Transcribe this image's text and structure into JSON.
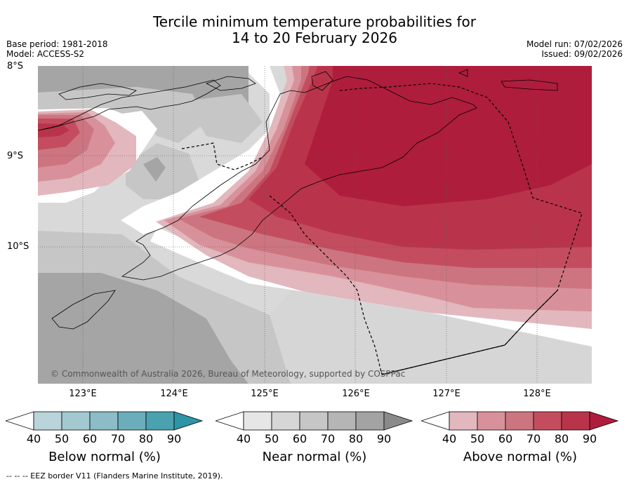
{
  "title_line1": "Tercile minimum temperature probabilities for",
  "title_line2": "14 to 20 February 2026",
  "meta": {
    "base_period": "Base period: 1981-2018",
    "model": "Model: ACCESS-S2",
    "model_run": "Model run: 07/02/2026",
    "issued": "Issued: 09/02/2026"
  },
  "lat_labels": [
    "8°S",
    "9°S",
    "10°S"
  ],
  "lon_labels": [
    "123°E",
    "124°E",
    "125°E",
    "126°E",
    "127°E",
    "128°E"
  ],
  "copyright": "© Commonwealth of Australia 2026, Bureau of Meteorology, supported by COSPPac",
  "colorbars": [
    {
      "label": "Below normal (%)",
      "ticks": [
        "40",
        "50",
        "60",
        "70",
        "80",
        "90"
      ],
      "colors": [
        "#ffffff",
        "#b9d4da",
        "#a3c9d0",
        "#8cbcc6",
        "#6badba",
        "#4aa1b0",
        "#2f95a6"
      ]
    },
    {
      "label": "Near normal (%)",
      "ticks": [
        "40",
        "50",
        "60",
        "70",
        "80",
        "90"
      ],
      "colors": [
        "#ffffff",
        "#e6e6e6",
        "#d6d6d6",
        "#c6c6c6",
        "#b5b5b5",
        "#a3a3a3",
        "#8a8a8a"
      ]
    },
    {
      "label": "Above normal (%)",
      "ticks": [
        "40",
        "50",
        "60",
        "70",
        "80",
        "90"
      ],
      "colors": [
        "#ffffff",
        "#e2b7bd",
        "#d8919a",
        "#cc7580",
        "#c34d5e",
        "#b9344b",
        "#af1d3c"
      ]
    }
  ],
  "footer": "--  --  -- EEZ border V11 (Flanders Marine Institute, 2019)."
}
